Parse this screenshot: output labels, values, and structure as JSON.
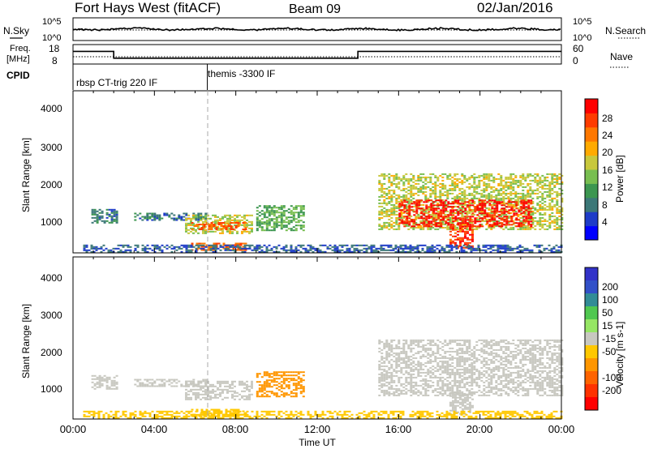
{
  "header": {
    "station": "Fort Hays West (fitACF)",
    "beam": "Beam 09",
    "date": "02/Jan/2016"
  },
  "noise_panel": {
    "left_label": "N.Sky",
    "right_label": "N.Search",
    "ticks": [
      "10^5",
      "10^0"
    ],
    "right_ticks": [
      "10^5",
      "10^0"
    ]
  },
  "freq_panel": {
    "left_label_1": "Freq.",
    "left_label_2": "[MHz]",
    "left_ticks": [
      "18",
      "8"
    ],
    "right_label": "Nave",
    "right_ticks": [
      "60",
      "0"
    ]
  },
  "cpid": {
    "label": "CPID",
    "entries": [
      {
        "text": "rbsp CT-trig 220 IF",
        "start_hour": 0.0
      },
      {
        "text": "themis -3300 IF",
        "start_hour": 6.7
      }
    ]
  },
  "axes": {
    "x_ticks": [
      "00:00",
      "04:00",
      "08:00",
      "12:00",
      "16:00",
      "20:00",
      "00:00"
    ],
    "x_label": "Time UT",
    "y_ticks": [
      "4000",
      "3000",
      "2000",
      "1000"
    ],
    "y_label": "Slant Range [km]",
    "x_range_hours": [
      0,
      24
    ],
    "y_range_km": [
      180,
      4500
    ]
  },
  "power_colorbar": {
    "label": "Power [dB]",
    "ticks": [
      "28",
      "24",
      "20",
      "16",
      "12",
      "8",
      "4"
    ],
    "colors": [
      "#0000ff",
      "#1e3cc8",
      "#3c7878",
      "#3c9650",
      "#78be50",
      "#c8c83c",
      "#ffaa00",
      "#ff7800",
      "#ff3c00",
      "#ff0000"
    ]
  },
  "velocity_colorbar": {
    "label": "Velocity [m s-1]",
    "ticks": [
      "200",
      "100",
      "50",
      "15",
      "-15",
      "-50",
      "-100",
      "-200"
    ],
    "colors": [
      "#3232c8",
      "#3250c8",
      "#328c96",
      "#50c850",
      "#96e664",
      "#c8c8c0",
      "#ffc800",
      "#ff9600",
      "#ff6400",
      "#ff3200",
      "#ff0000"
    ]
  },
  "chart_data": {
    "type": "heatmap",
    "x_unit": "hours UT",
    "y_unit": "km",
    "marker_hour": 6.6,
    "noise_sky_level": "10^3",
    "frequency_steps": [
      {
        "start": 0.0,
        "end": 2.0,
        "mhz": 14.5
      },
      {
        "start": 2.0,
        "end": 14.0,
        "mhz": 11.0
      },
      {
        "start": 14.0,
        "end": 24.0,
        "mhz": 14.5
      }
    ],
    "power_regions": [
      {
        "t0": 0.9,
        "t1": 2.2,
        "r0": 1000,
        "r1": 1350,
        "db": 8
      },
      {
        "t0": 3.0,
        "t1": 6.5,
        "r0": 1050,
        "r1": 1250,
        "db": 8
      },
      {
        "t0": 5.5,
        "t1": 8.8,
        "r0": 700,
        "r1": 1200,
        "db": 16
      },
      {
        "t0": 5.8,
        "t1": 8.5,
        "r0": 800,
        "r1": 1000,
        "db": 24
      },
      {
        "t0": 9.0,
        "t1": 11.3,
        "r0": 800,
        "r1": 1450,
        "db": 12
      },
      {
        "t0": 5.8,
        "t1": 8.5,
        "r0": 250,
        "r1": 450,
        "db": 24
      },
      {
        "t0": 15.0,
        "t1": 24.0,
        "r0": 800,
        "r1": 2300,
        "db": 16
      },
      {
        "t0": 16.0,
        "t1": 22.5,
        "r0": 900,
        "r1": 1600,
        "db": 28
      },
      {
        "t0": 18.5,
        "t1": 19.6,
        "r0": 300,
        "r1": 900,
        "db": 26
      },
      {
        "t0": 0.5,
        "t1": 24.0,
        "r0": 200,
        "r1": 400,
        "db": 6
      }
    ],
    "velocity_regions": [
      {
        "t0": 0.9,
        "t1": 2.2,
        "r0": 1000,
        "r1": 1350,
        "v": 0
      },
      {
        "t0": 3.0,
        "t1": 6.5,
        "r0": 1050,
        "r1": 1250,
        "v": 0
      },
      {
        "t0": 5.5,
        "t1": 8.8,
        "r0": 700,
        "r1": 1200,
        "v": 0
      },
      {
        "t0": 9.0,
        "t1": 11.3,
        "r0": 800,
        "r1": 1450,
        "v": -60
      },
      {
        "t0": 5.8,
        "t1": 8.5,
        "r0": 250,
        "r1": 450,
        "v": -30
      },
      {
        "t0": 15.0,
        "t1": 24.0,
        "r0": 800,
        "r1": 2300,
        "v": 0
      },
      {
        "t0": 18.5,
        "t1": 19.6,
        "r0": 300,
        "r1": 900,
        "v": 0
      },
      {
        "t0": 0.5,
        "t1": 24.0,
        "r0": 200,
        "r1": 400,
        "v": -30
      }
    ]
  }
}
